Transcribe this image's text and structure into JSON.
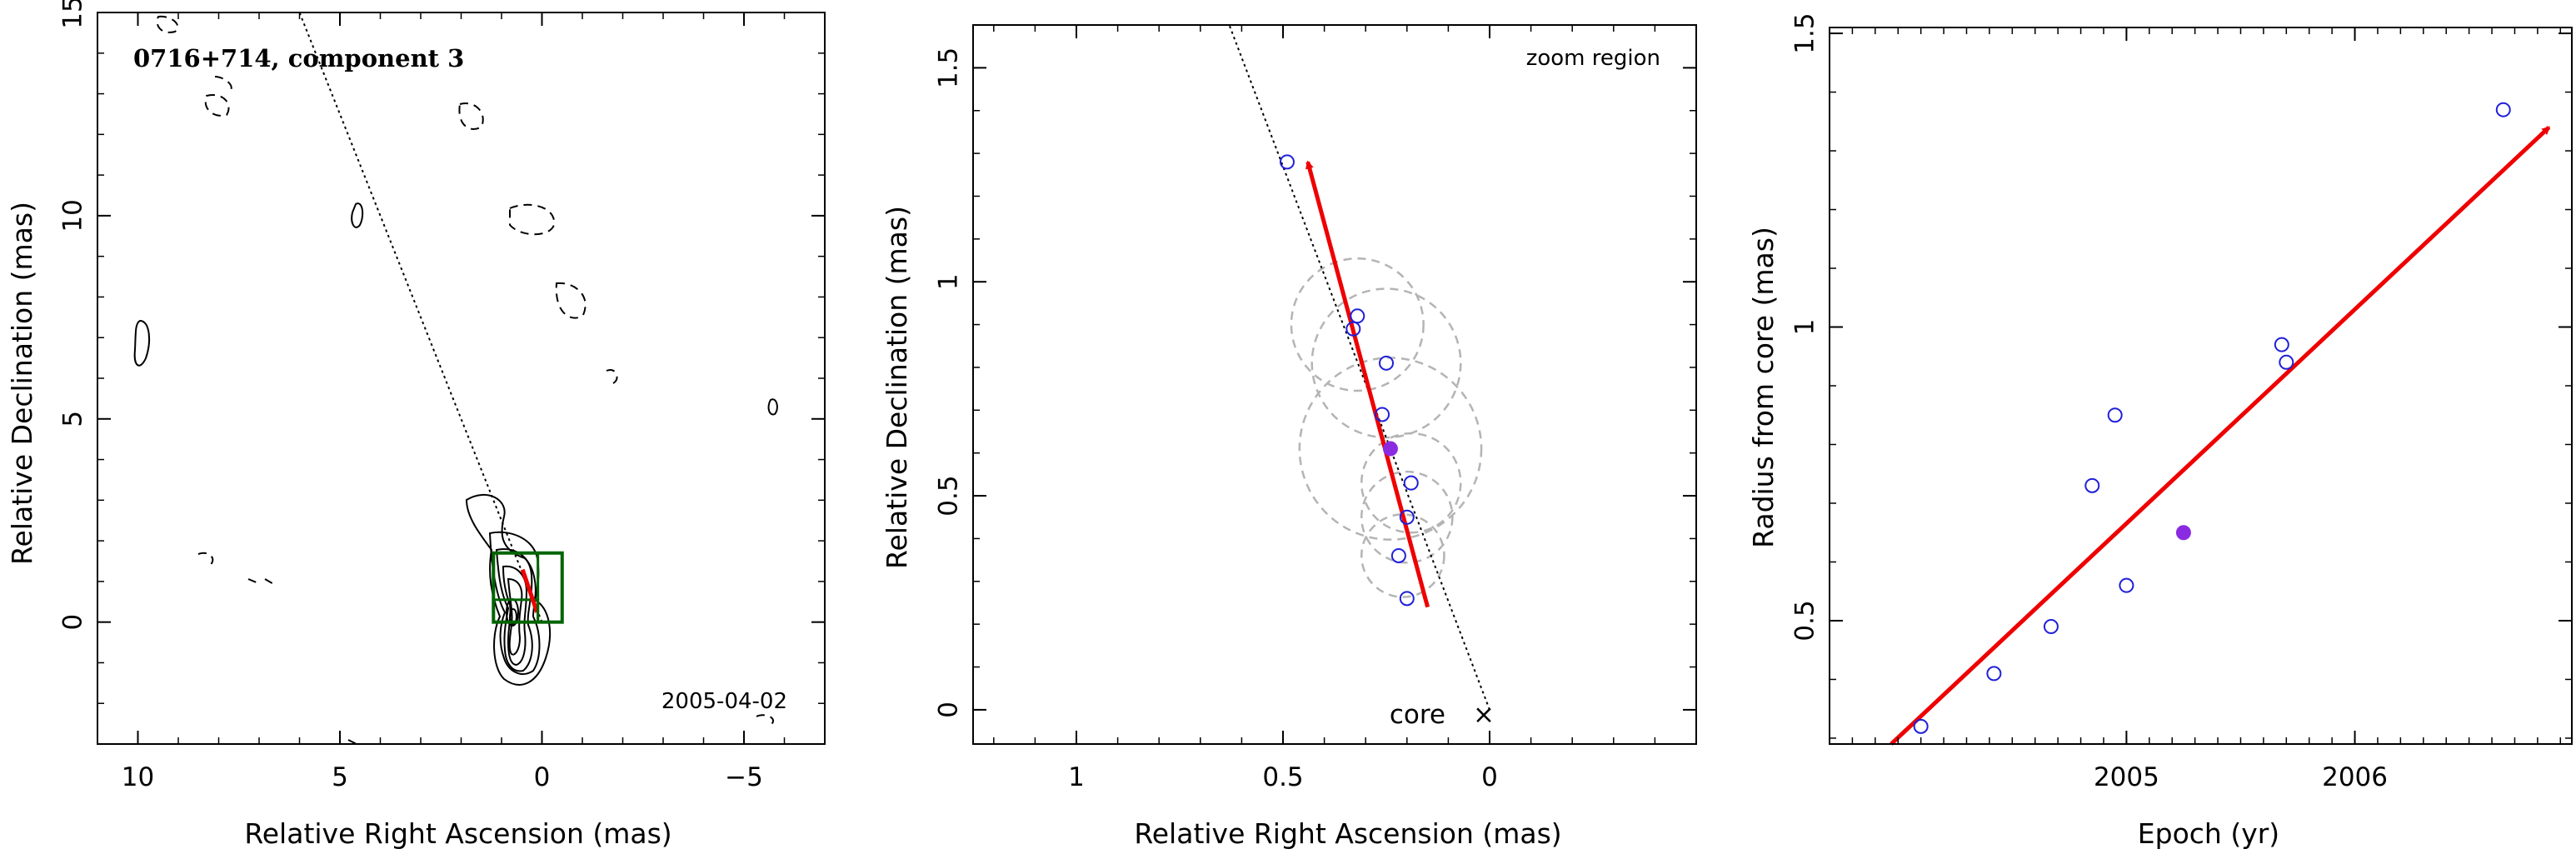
{
  "colors": {
    "axis": "#000000",
    "contour": "#000000",
    "box": "#006400",
    "arrow": "#ee0000",
    "points": "#1f1fd9",
    "highlight": "#8a2be2",
    "circles": "#b4b4b4"
  },
  "chart_data": [
    {
      "type": "contour",
      "title": "0716+714, component 3",
      "date_label": "2005-04-02",
      "xlabel": "Relative Right Ascension (mas)",
      "ylabel": "Relative Declination (mas)",
      "xlim": [
        11,
        -7
      ],
      "ylim": [
        -3,
        15
      ],
      "xticks": [
        10,
        5,
        0,
        -5
      ],
      "xtick_labels": [
        "10",
        "5",
        "0",
        "−5"
      ],
      "yticks": [
        0,
        5,
        10,
        15
      ],
      "ytick_labels": [
        "0",
        "5",
        "10",
        "15"
      ],
      "trajectory_line": {
        "from": [
          0,
          0
        ],
        "to": [
          6.0,
          15
        ]
      },
      "arrow": {
        "from": [
          0.12,
          0.24
        ],
        "to": [
          0.48,
          1.29
        ]
      },
      "zoom_box": {
        "x": [
          -0.5,
          1.2
        ],
        "y": [
          0,
          1.7
        ]
      }
    },
    {
      "type": "scatter",
      "annotation": "zoom region",
      "core_label": "core",
      "core_marker": "×",
      "xlabel": "Relative Right Ascension (mas)",
      "ylabel": "Relative Declination (mas)",
      "xlim": [
        1.25,
        -0.5
      ],
      "ylim": [
        -0.08,
        1.6
      ],
      "xticks": [
        1,
        0.5,
        0
      ],
      "xtick_labels": [
        "1",
        "0.5",
        "0"
      ],
      "yticks": [
        0,
        0.5,
        1,
        1.5
      ],
      "ytick_labels": [
        "0",
        "0.5",
        "1",
        "1.5"
      ],
      "points": [
        {
          "x": 0.49,
          "y": 1.28
        },
        {
          "x": 0.32,
          "y": 0.92
        },
        {
          "x": 0.33,
          "y": 0.89
        },
        {
          "x": 0.25,
          "y": 0.81
        },
        {
          "x": 0.26,
          "y": 0.69
        },
        {
          "x": 0.19,
          "y": 0.53
        },
        {
          "x": 0.2,
          "y": 0.45
        },
        {
          "x": 0.22,
          "y": 0.36
        },
        {
          "x": 0.2,
          "y": 0.26
        }
      ],
      "highlight_point": {
        "x": 0.24,
        "y": 0.61
      },
      "error_circles": [
        {
          "x": 0.32,
          "y": 0.9,
          "r": 0.16
        },
        {
          "x": 0.25,
          "y": 0.81,
          "r": 0.18
        },
        {
          "x": 0.24,
          "y": 0.61,
          "r": 0.22
        },
        {
          "x": 0.19,
          "y": 0.53,
          "r": 0.12
        },
        {
          "x": 0.2,
          "y": 0.45,
          "r": 0.11
        },
        {
          "x": 0.21,
          "y": 0.36,
          "r": 0.1
        }
      ],
      "arrow": {
        "from": [
          0.15,
          0.24
        ],
        "to": [
          0.44,
          1.28
        ]
      },
      "trajectory_line": {
        "from": [
          0,
          0
        ],
        "to": [
          0.63,
          1.6
        ]
      }
    },
    {
      "type": "scatter",
      "xlabel": "Epoch (yr)",
      "ylabel": "Radius from core (mas)",
      "xlim": [
        2003.7,
        2006.95
      ],
      "ylim": [
        0.29,
        1.51
      ],
      "xticks": [
        2005,
        2006
      ],
      "xtick_labels": [
        "2005",
        "2006"
      ],
      "yticks": [
        0.5,
        1,
        1.5
      ],
      "ytick_labels": [
        "0.5",
        "1",
        "1.5"
      ],
      "points": [
        {
          "x": 2004.1,
          "y": 0.32
        },
        {
          "x": 2004.42,
          "y": 0.41
        },
        {
          "x": 2004.67,
          "y": 0.49
        },
        {
          "x": 2004.85,
          "y": 0.73
        },
        {
          "x": 2004.95,
          "y": 0.85
        },
        {
          "x": 2005.0,
          "y": 0.56
        },
        {
          "x": 2005.68,
          "y": 0.97
        },
        {
          "x": 2005.7,
          "y": 0.94
        },
        {
          "x": 2006.65,
          "y": 1.37
        }
      ],
      "highlight_point": {
        "x": 2005.25,
        "y": 0.65
      },
      "arrow": {
        "from": [
          2003.97,
          0.29
        ],
        "to": [
          2006.85,
          1.34
        ]
      }
    }
  ]
}
